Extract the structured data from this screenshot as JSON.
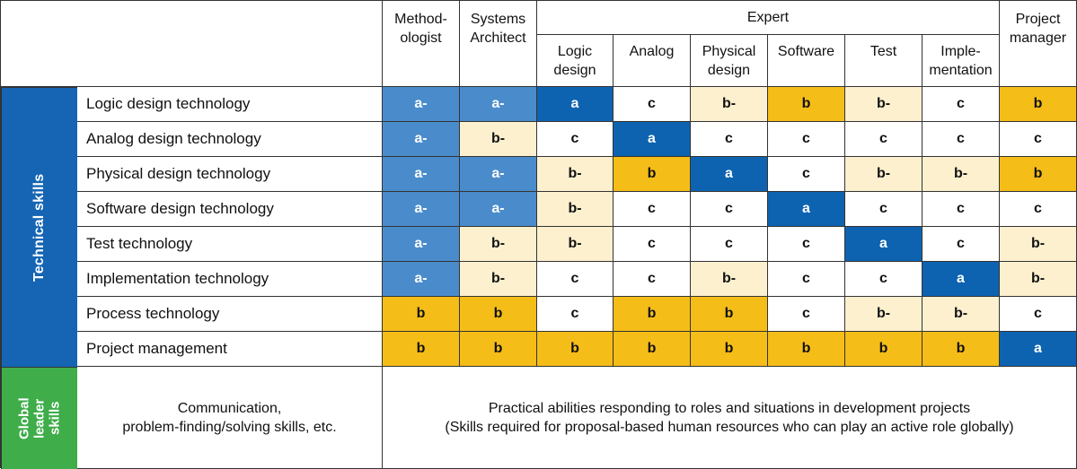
{
  "header": {
    "methodologist": "Method-\nologist",
    "systems_architect": "Systems\nArchitect",
    "expert": "Expert",
    "project_manager": "Project\nmanager",
    "expert_subcolumns": [
      "Logic\ndesign",
      "Analog",
      "Physical\ndesign",
      "Software",
      "Test",
      "Imple-\nmentation"
    ]
  },
  "technical_skills": {
    "label": "Technical skills",
    "rows": [
      {
        "skill": "Logic design technology",
        "levels": [
          "a-",
          "a-",
          "a",
          "c",
          "b-",
          "b",
          "b-",
          "c",
          "b"
        ]
      },
      {
        "skill": "Analog design technology",
        "levels": [
          "a-",
          "b-",
          "c",
          "a",
          "c",
          "c",
          "c",
          "c",
          "c"
        ]
      },
      {
        "skill": "Physical design technology",
        "levels": [
          "a-",
          "a-",
          "b-",
          "b",
          "a",
          "c",
          "b-",
          "b-",
          "b"
        ]
      },
      {
        "skill": "Software design technology",
        "levels": [
          "a-",
          "a-",
          "b-",
          "c",
          "c",
          "a",
          "c",
          "c",
          "c"
        ]
      },
      {
        "skill": "Test technology",
        "levels": [
          "a-",
          "b-",
          "b-",
          "c",
          "c",
          "c",
          "a",
          "c",
          "b-"
        ]
      },
      {
        "skill": "Implementation technology",
        "levels": [
          "a-",
          "b-",
          "c",
          "c",
          "b-",
          "c",
          "c",
          "a",
          "b-"
        ]
      },
      {
        "skill": "Process technology",
        "levels": [
          "b",
          "b",
          "c",
          "b",
          "b",
          "c",
          "b-",
          "b-",
          "c"
        ]
      },
      {
        "skill": "Project management",
        "levels": [
          "b",
          "b",
          "b",
          "b",
          "b",
          "b",
          "b",
          "b",
          "a"
        ]
      }
    ]
  },
  "global_leader": {
    "label": "Global\nleader\nskills",
    "skills": "Communication,\nproblem-finding/solving skills, etc.",
    "description": "Practical abilities responding to roles and situations in development projects\n(Skills required for proposal-based human resources who can play an active role globally)"
  },
  "level_colors": {
    "a": "#0e63b1",
    "a-": "#4a8ccb",
    "b": "#f5bd17",
    "b-": "#fdf0cf",
    "c": "#ffffff"
  }
}
